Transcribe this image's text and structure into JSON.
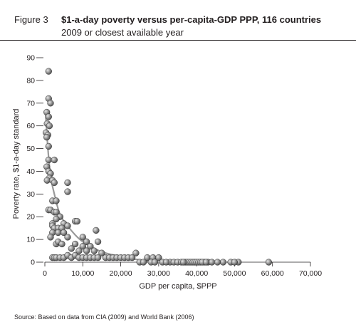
{
  "figure": {
    "label": "Figure 3",
    "title": "$1-a-day poverty versus per-capita-GDP PPP, 116 countries",
    "subtitle": "2009 or closest available year",
    "source": "Source: Based on data from CIA (2009) and World Bank (2006)"
  },
  "chart_data": {
    "type": "scatter",
    "xlabel": "GDP per capita, $PPP",
    "ylabel": "Poverty rate, $1-a-day standard",
    "xlim": [
      0,
      70000
    ],
    "ylim": [
      0,
      90
    ],
    "x_ticks": [
      "0",
      "10,000",
      "20,000",
      "30,000",
      "40,000",
      "50,000",
      "60,000",
      "70,000"
    ],
    "y_ticks": [
      "0",
      "10",
      "20",
      "30",
      "40",
      "50",
      "60",
      "70",
      "80",
      "90"
    ],
    "grid": false,
    "marker_color": "#8a8a8a",
    "trend_color": "#9a9a9a",
    "trend": [
      [
        200,
        65
      ],
      [
        800,
        50
      ],
      [
        1500,
        38
      ],
      [
        2500,
        30
      ],
      [
        4000,
        21
      ],
      [
        6000,
        16
      ],
      [
        8000,
        12
      ],
      [
        10000,
        9
      ],
      [
        13000,
        6
      ],
      [
        16000,
        4
      ],
      [
        20000,
        2.5
      ],
      [
        25000,
        1
      ],
      [
        30000,
        0
      ],
      [
        33000,
        0
      ]
    ],
    "points": [
      [
        1000,
        84
      ],
      [
        1000,
        72
      ],
      [
        1500,
        70
      ],
      [
        500,
        66
      ],
      [
        1000,
        64
      ],
      [
        600,
        61
      ],
      [
        1200,
        60
      ],
      [
        300,
        57
      ],
      [
        800,
        56
      ],
      [
        500,
        55
      ],
      [
        1000,
        51
      ],
      [
        1000,
        45
      ],
      [
        2500,
        45
      ],
      [
        500,
        42
      ],
      [
        1000,
        40
      ],
      [
        1500,
        39
      ],
      [
        1200,
        37
      ],
      [
        600,
        36
      ],
      [
        2000,
        36
      ],
      [
        2500,
        35
      ],
      [
        6000,
        35
      ],
      [
        6000,
        31
      ],
      [
        2000,
        27
      ],
      [
        3000,
        27
      ],
      [
        1000,
        23
      ],
      [
        1500,
        23
      ],
      [
        2500,
        22
      ],
      [
        3000,
        22
      ],
      [
        4000,
        20
      ],
      [
        3000,
        19
      ],
      [
        2000,
        17
      ],
      [
        5000,
        17
      ],
      [
        8000,
        18
      ],
      [
        8500,
        18
      ],
      [
        2000,
        16
      ],
      [
        2500,
        15
      ],
      [
        3500,
        15
      ],
      [
        4500,
        15
      ],
      [
        6000,
        16
      ],
      [
        2000,
        13
      ],
      [
        3500,
        13
      ],
      [
        5000,
        13
      ],
      [
        1500,
        11
      ],
      [
        6000,
        11
      ],
      [
        10000,
        11
      ],
      [
        13500,
        14
      ],
      [
        3000,
        8
      ],
      [
        3500,
        9
      ],
      [
        4500,
        8
      ],
      [
        8000,
        8
      ],
      [
        11000,
        9
      ],
      [
        14000,
        9
      ],
      [
        10000,
        7
      ],
      [
        12000,
        7
      ],
      [
        13000,
        5
      ],
      [
        2000,
        2
      ],
      [
        2500,
        2
      ],
      [
        3000,
        2
      ],
      [
        4000,
        2
      ],
      [
        5000,
        2
      ],
      [
        6000,
        3
      ],
      [
        7000,
        2
      ],
      [
        8000,
        3
      ],
      [
        9000,
        2
      ],
      [
        10000,
        2
      ],
      [
        11000,
        2
      ],
      [
        12000,
        2
      ],
      [
        13000,
        2
      ],
      [
        14000,
        2
      ],
      [
        16000,
        2
      ],
      [
        17000,
        2
      ],
      [
        18000,
        2
      ],
      [
        19000,
        2
      ],
      [
        20000,
        2
      ],
      [
        21000,
        2
      ],
      [
        22000,
        2
      ],
      [
        23000,
        2
      ],
      [
        24000,
        4
      ],
      [
        27000,
        2
      ],
      [
        28500,
        2
      ],
      [
        30000,
        2
      ],
      [
        11000,
        5
      ],
      [
        9000,
        5
      ],
      [
        7000,
        6
      ],
      [
        15000,
        4
      ],
      [
        25000,
        0
      ],
      [
        28000,
        0
      ],
      [
        29000,
        0
      ],
      [
        31000,
        0
      ],
      [
        33000,
        0
      ],
      [
        34000,
        0
      ],
      [
        35000,
        0
      ],
      [
        36000,
        0
      ],
      [
        37000,
        0
      ],
      [
        37500,
        0
      ],
      [
        38000,
        0
      ],
      [
        38500,
        0
      ],
      [
        39000,
        0
      ],
      [
        39500,
        0
      ],
      [
        40000,
        0
      ],
      [
        40500,
        0
      ],
      [
        41000,
        0
      ],
      [
        42000,
        0
      ],
      [
        43000,
        0
      ],
      [
        44000,
        0
      ],
      [
        47000,
        0
      ],
      [
        49000,
        0
      ],
      [
        51000,
        0
      ],
      [
        59000,
        0
      ],
      [
        36500,
        0
      ],
      [
        41500,
        0
      ],
      [
        42500,
        0
      ],
      [
        45500,
        0
      ],
      [
        50000,
        0
      ],
      [
        26000,
        0
      ],
      [
        32000,
        0
      ]
    ]
  }
}
